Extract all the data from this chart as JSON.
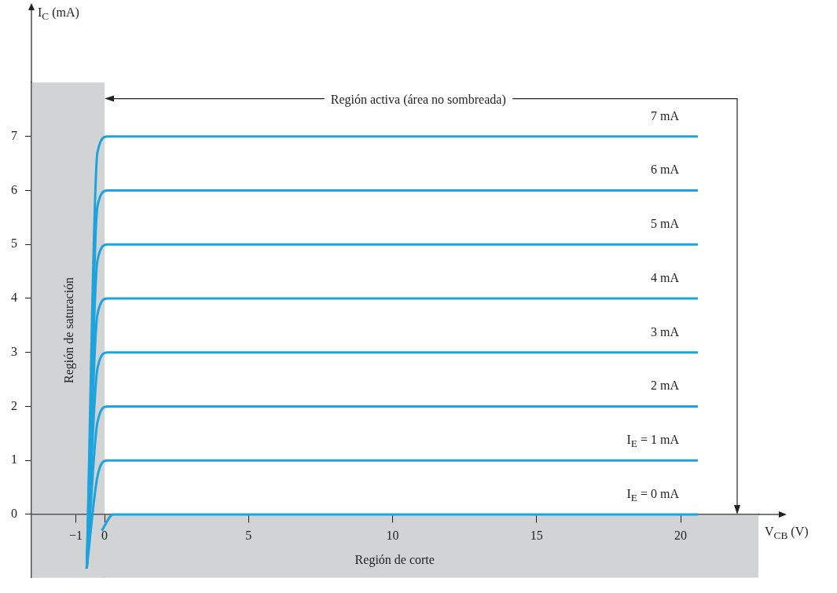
{
  "chart_data": {
    "type": "line",
    "xlabel": "V$_{CB}$ (V)",
    "ylabel": "I$_{C}$ (mA)",
    "xlim": [
      -2.54,
      22.7
    ],
    "ylim": [
      -1.17,
      8
    ],
    "xticks": [
      {
        "value": -1,
        "label": "−1"
      },
      0,
      5,
      10,
      15,
      20
    ],
    "yticks": [
      0,
      1,
      2,
      3,
      4,
      5,
      6,
      7
    ],
    "grid": false,
    "legend": false,
    "marker": "none",
    "line_style": "solid",
    "series": [
      {
        "name": "7  mA",
        "color": "#1fa3dc",
        "x": [
          -0.62,
          -0.25,
          0.1,
          20.6
        ],
        "values": [
          -1,
          6.7,
          7,
          7
        ]
      },
      {
        "name": "6  mA",
        "color": "#1fa3dc",
        "x": [
          -0.62,
          -0.25,
          0.1,
          20.6
        ],
        "values": [
          -1,
          5.7,
          6,
          6
        ]
      },
      {
        "name": "5  mA",
        "color": "#1fa3dc",
        "x": [
          -0.62,
          -0.25,
          0.1,
          20.6
        ],
        "values": [
          -1,
          4.7,
          5,
          5
        ]
      },
      {
        "name": "4  mA",
        "color": "#1fa3dc",
        "x": [
          -0.62,
          -0.25,
          0.1,
          20.6
        ],
        "values": [
          -1,
          3.7,
          4,
          4
        ]
      },
      {
        "name": "3  mA",
        "color": "#1fa3dc",
        "x": [
          -0.62,
          -0.25,
          0.1,
          20.6
        ],
        "values": [
          -1,
          2.7,
          3,
          3
        ]
      },
      {
        "name": "2 mA",
        "color": "#1fa3dc",
        "x": [
          -0.62,
          -0.25,
          0.1,
          20.6
        ],
        "values": [
          -1,
          1.7,
          2,
          2
        ]
      },
      {
        "name": "I$_{E}$ = 1 mA",
        "color": "#1fa3dc",
        "x": [
          -0.62,
          -0.25,
          0.1,
          20.6
        ],
        "values": [
          -1,
          0.7,
          1,
          1
        ]
      },
      {
        "name": "I$_{E}$ = 0 mA",
        "color": "#1fa3dc",
        "x": [
          -0.1,
          0.3,
          20.6
        ],
        "values": [
          -0.3,
          0,
          0
        ]
      }
    ],
    "bands": [
      {
        "axis": "x",
        "from": -2.54,
        "to": 0,
        "label": "Región de saturación",
        "color": "#d1d3d4"
      },
      {
        "axis": "y",
        "from": -1.17,
        "to": 0,
        "label": "Región de corte",
        "color": "#d1d3d4"
      }
    ],
    "annotations": [
      {
        "text": "Región activa (área no sombreada)",
        "x": 0,
        "y": 7.7
      }
    ]
  }
}
